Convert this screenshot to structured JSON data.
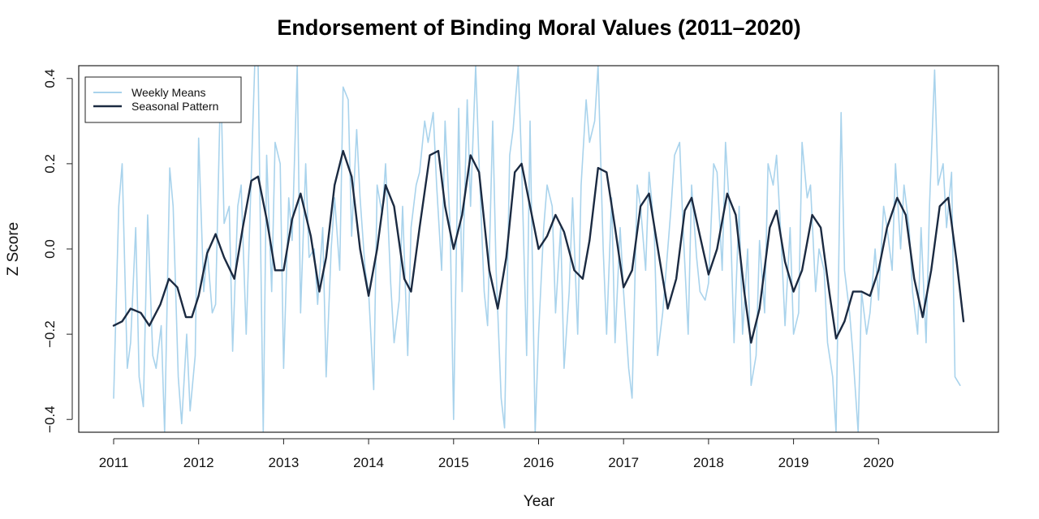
{
  "chart_data": {
    "type": "line",
    "title": "Endorsement of Binding Moral Values (2011–2020)",
    "xlabel": "Year",
    "ylabel": "Z Score",
    "xlim": [
      2011,
      2021
    ],
    "ylim": [
      -0.43,
      0.43
    ],
    "x_ticks": [
      2011,
      2012,
      2013,
      2014,
      2015,
      2016,
      2017,
      2018,
      2019,
      2020
    ],
    "x_tick_labels": [
      "2011",
      "2012",
      "2013",
      "2014",
      "2015",
      "2016",
      "2017",
      "2018",
      "2019",
      "2020"
    ],
    "y_ticks": [
      -0.4,
      -0.2,
      0.0,
      0.2,
      0.4
    ],
    "y_tick_labels": [
      "−0.4",
      "−0.2",
      "0.0",
      "0.2",
      "0.4"
    ],
    "grid": false,
    "legend": {
      "position": "top-left",
      "entries": [
        "Weekly Means",
        "Seasonal Pattern"
      ]
    },
    "colors": {
      "weekly_means": "#a9d3ec",
      "seasonal_pattern": "#1b2a41"
    },
    "series": [
      {
        "name": "Weekly Means",
        "x": [
          2011.0,
          2011.06,
          2011.1,
          2011.16,
          2011.2,
          2011.26,
          2011.3,
          2011.35,
          2011.4,
          2011.46,
          2011.5,
          2011.56,
          2011.6,
          2011.66,
          2011.7,
          2011.76,
          2011.8,
          2011.86,
          2011.9,
          2011.96,
          2012.0,
          2012.06,
          2012.1,
          2012.16,
          2012.2,
          2012.26,
          2012.3,
          2012.36,
          2012.4,
          2012.46,
          2012.5,
          2012.56,
          2012.6,
          2012.66,
          2012.7,
          2012.76,
          2012.8,
          2012.86,
          2012.9,
          2012.96,
          2013.0,
          2013.06,
          2013.1,
          2013.16,
          2013.2,
          2013.26,
          2013.3,
          2013.36,
          2013.4,
          2013.46,
          2013.5,
          2013.56,
          2013.6,
          2013.66,
          2013.7,
          2013.76,
          2013.8,
          2013.86,
          2013.9,
          2013.96,
          2014.0,
          2014.06,
          2014.1,
          2014.16,
          2014.2,
          2014.26,
          2014.3,
          2014.36,
          2014.4,
          2014.46,
          2014.5,
          2014.56,
          2014.6,
          2014.66,
          2014.7,
          2014.76,
          2014.8,
          2014.86,
          2014.9,
          2014.96,
          2015.0,
          2015.06,
          2015.1,
          2015.16,
          2015.2,
          2015.26,
          2015.3,
          2015.36,
          2015.4,
          2015.46,
          2015.5,
          2015.56,
          2015.6,
          2015.66,
          2015.7,
          2015.76,
          2015.8,
          2015.86,
          2015.9,
          2015.96,
          2016.0,
          2016.06,
          2016.1,
          2016.16,
          2016.2,
          2016.26,
          2016.3,
          2016.36,
          2016.4,
          2016.46,
          2016.5,
          2016.56,
          2016.6,
          2016.66,
          2016.7,
          2016.76,
          2016.8,
          2016.86,
          2016.9,
          2016.96,
          2017.0,
          2017.06,
          2017.1,
          2017.16,
          2017.2,
          2017.26,
          2017.3,
          2017.36,
          2017.4,
          2017.46,
          2017.5,
          2017.56,
          2017.6,
          2017.66,
          2017.7,
          2017.76,
          2017.8,
          2017.86,
          2017.9,
          2017.96,
          2018.0,
          2018.06,
          2018.1,
          2018.16,
          2018.2,
          2018.26,
          2018.3,
          2018.36,
          2018.4,
          2018.46,
          2018.5,
          2018.56,
          2018.6,
          2018.66,
          2018.7,
          2018.76,
          2018.8,
          2018.86,
          2018.9,
          2018.96,
          2019.0,
          2019.06,
          2019.1,
          2019.16,
          2019.2,
          2019.26,
          2019.3,
          2019.36,
          2019.4,
          2019.46,
          2019.5,
          2019.56,
          2019.6,
          2019.66,
          2019.7,
          2019.76,
          2019.8,
          2019.86,
          2019.9,
          2019.96,
          2020.0,
          2020.06,
          2020.1,
          2020.16,
          2020.2,
          2020.26,
          2020.3,
          2020.36,
          2020.4,
          2020.46,
          2020.5,
          2020.56,
          2020.6,
          2020.66,
          2020.7,
          2020.76,
          2020.8,
          2020.86,
          2020.9,
          2020.96
        ],
        "values": [
          -0.35,
          0.1,
          0.2,
          -0.28,
          -0.22,
          0.05,
          -0.3,
          -0.37,
          0.08,
          -0.25,
          -0.28,
          -0.18,
          -0.43,
          0.19,
          0.1,
          -0.3,
          -0.41,
          -0.2,
          -0.38,
          -0.25,
          0.26,
          -0.1,
          0.0,
          -0.15,
          -0.13,
          0.4,
          0.06,
          0.1,
          -0.24,
          0.1,
          0.15,
          -0.2,
          0.05,
          0.43,
          0.43,
          -0.43,
          0.22,
          -0.1,
          0.25,
          0.2,
          -0.28,
          0.12,
          0.02,
          0.43,
          -0.15,
          0.2,
          -0.02,
          0.0,
          -0.13,
          0.05,
          -0.3,
          0.0,
          0.12,
          -0.05,
          0.38,
          0.35,
          0.03,
          0.28,
          0.12,
          -0.05,
          -0.1,
          -0.33,
          0.15,
          0.08,
          0.2,
          -0.08,
          -0.22,
          -0.12,
          0.1,
          -0.25,
          0.05,
          0.15,
          0.18,
          0.3,
          0.25,
          0.32,
          0.15,
          -0.05,
          0.3,
          0.05,
          -0.4,
          0.33,
          -0.1,
          0.35,
          0.1,
          0.43,
          0.2,
          -0.1,
          -0.18,
          0.3,
          -0.05,
          -0.35,
          -0.42,
          0.22,
          0.28,
          0.43,
          0.2,
          -0.25,
          0.3,
          -0.43,
          -0.2,
          0.05,
          0.15,
          0.1,
          -0.15,
          0.05,
          -0.28,
          -0.1,
          0.12,
          -0.2,
          0.15,
          0.35,
          0.25,
          0.3,
          0.43,
          0.0,
          -0.2,
          0.12,
          -0.22,
          0.05,
          -0.1,
          -0.28,
          -0.35,
          0.15,
          0.1,
          -0.05,
          0.18,
          0.05,
          -0.25,
          -0.15,
          -0.05,
          0.1,
          0.22,
          0.25,
          0.05,
          -0.2,
          0.15,
          -0.02,
          -0.1,
          -0.12,
          -0.08,
          0.2,
          0.18,
          -0.05,
          0.25,
          0.05,
          -0.22,
          0.1,
          -0.2,
          0.0,
          -0.32,
          -0.25,
          0.02,
          -0.15,
          0.2,
          0.15,
          0.22,
          0.0,
          -0.18,
          0.05,
          -0.2,
          -0.15,
          0.25,
          0.12,
          0.15,
          -0.1,
          0.0,
          -0.05,
          -0.22,
          -0.3,
          -0.43,
          0.32,
          -0.05,
          -0.15,
          -0.25,
          -0.43,
          -0.1,
          -0.2,
          -0.15,
          0.0,
          -0.12,
          0.1,
          0.05,
          -0.05,
          0.2,
          0.0,
          0.15,
          0.05,
          -0.1,
          -0.2,
          0.05,
          -0.22,
          0.1,
          0.42,
          0.15,
          0.2,
          0.05,
          0.18,
          -0.3,
          -0.32
        ]
      },
      {
        "name": "Seasonal Pattern",
        "x": [
          2011.0,
          2011.1,
          2011.2,
          2011.32,
          2011.42,
          2011.55,
          2011.65,
          2011.75,
          2011.85,
          2011.92,
          2012.0,
          2012.1,
          2012.2,
          2012.3,
          2012.42,
          2012.52,
          2012.62,
          2012.7,
          2012.8,
          2012.9,
          2013.0,
          2013.1,
          2013.2,
          2013.32,
          2013.42,
          2013.5,
          2013.6,
          2013.7,
          2013.8,
          2013.9,
          2014.0,
          2014.1,
          2014.2,
          2014.3,
          2014.42,
          2014.5,
          2014.6,
          2014.72,
          2014.82,
          2014.9,
          2015.0,
          2015.1,
          2015.2,
          2015.3,
          2015.42,
          2015.52,
          2015.62,
          2015.72,
          2015.8,
          2015.9,
          2016.0,
          2016.1,
          2016.2,
          2016.3,
          2016.42,
          2016.52,
          2016.6,
          2016.7,
          2016.8,
          2016.9,
          2017.0,
          2017.1,
          2017.2,
          2017.3,
          2017.42,
          2017.52,
          2017.62,
          2017.72,
          2017.8,
          2017.9,
          2018.0,
          2018.1,
          2018.22,
          2018.32,
          2018.42,
          2018.5,
          2018.6,
          2018.72,
          2018.8,
          2018.9,
          2019.0,
          2019.1,
          2019.22,
          2019.32,
          2019.42,
          2019.5,
          2019.6,
          2019.7,
          2019.8,
          2019.9,
          2020.0,
          2020.1,
          2020.22,
          2020.32,
          2020.42,
          2020.52,
          2020.62,
          2020.72,
          2020.82,
          2020.92,
          2021.0
        ],
        "values": [
          -0.18,
          -0.17,
          -0.14,
          -0.15,
          -0.18,
          -0.13,
          -0.07,
          -0.09,
          -0.16,
          -0.16,
          -0.11,
          -0.01,
          0.035,
          -0.02,
          -0.07,
          0.05,
          0.16,
          0.17,
          0.07,
          -0.05,
          -0.05,
          0.07,
          0.13,
          0.03,
          -0.1,
          -0.02,
          0.15,
          0.23,
          0.17,
          0.0,
          -0.11,
          0.0,
          0.15,
          0.1,
          -0.07,
          -0.1,
          0.05,
          0.22,
          0.23,
          0.1,
          0.0,
          0.08,
          0.22,
          0.18,
          -0.05,
          -0.14,
          -0.02,
          0.18,
          0.2,
          0.1,
          0.0,
          0.03,
          0.08,
          0.04,
          -0.05,
          -0.07,
          0.02,
          0.19,
          0.18,
          0.05,
          -0.09,
          -0.05,
          0.1,
          0.13,
          -0.02,
          -0.14,
          -0.07,
          0.09,
          0.12,
          0.03,
          -0.06,
          0.0,
          0.13,
          0.08,
          -0.1,
          -0.22,
          -0.14,
          0.05,
          0.09,
          -0.03,
          -0.1,
          -0.05,
          0.08,
          0.05,
          -0.1,
          -0.21,
          -0.17,
          -0.1,
          -0.1,
          -0.11,
          -0.05,
          0.05,
          0.12,
          0.08,
          -0.07,
          -0.16,
          -0.05,
          0.1,
          0.12,
          -0.03,
          -0.17
        ]
      }
    ]
  }
}
